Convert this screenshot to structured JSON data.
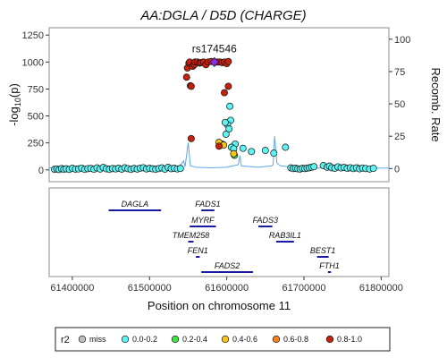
{
  "chart_data": [
    {
      "type": "scatter",
      "title": "AA:DGLA / D5D (CHARGE)",
      "xlabel": "Position on chromosome 11",
      "ylabel": "-log10(p)",
      "ylabel_parts": {
        "prefix": "-log",
        "sub": "10",
        "suffix": "(p)"
      },
      "y2label": "Recomb. Rate",
      "xlim": [
        61370000,
        61810000
      ],
      "ylim": [
        -60,
        1260
      ],
      "y2lim": [
        -6,
        104
      ],
      "yticks": [
        0,
        250,
        500,
        750,
        1000,
        1250
      ],
      "y2ticks": [
        0,
        25,
        50,
        75,
        100
      ],
      "xticks": [
        61400000,
        61500000,
        61600000,
        61700000,
        61800000
      ],
      "xtick_labels": [
        "61400000",
        "61500000",
        "61600000",
        "61700000",
        "61800000"
      ],
      "grid": false,
      "lead_snp": {
        "label": "rs174546",
        "x": 61584000,
        "y": 1000,
        "color": "#8a2be2"
      },
      "groups": [
        {
          "name": "miss",
          "color": "#bebebe",
          "points": []
        },
        {
          "name": "0.0-0.2",
          "color": "#5ff2f2",
          "points": [
            [
              61377000,
              5
            ],
            [
              61380000,
              8
            ],
            [
              61383000,
              3
            ],
            [
              61386000,
              12
            ],
            [
              61389000,
              6
            ],
            [
              61392000,
              10
            ],
            [
              61396000,
              4
            ],
            [
              61400000,
              14
            ],
            [
              61404000,
              7
            ],
            [
              61408000,
              9
            ],
            [
              61412000,
              16
            ],
            [
              61416000,
              5
            ],
            [
              61420000,
              11
            ],
            [
              61424000,
              13
            ],
            [
              61428000,
              6
            ],
            [
              61432000,
              18
            ],
            [
              61436000,
              8
            ],
            [
              61440000,
              22
            ],
            [
              61444000,
              10
            ],
            [
              61448000,
              6
            ],
            [
              61452000,
              12
            ],
            [
              61456000,
              9
            ],
            [
              61460000,
              15
            ],
            [
              61464000,
              7
            ],
            [
              61468000,
              19
            ],
            [
              61472000,
              11
            ],
            [
              61476000,
              5
            ],
            [
              61480000,
              13
            ],
            [
              61484000,
              8
            ],
            [
              61488000,
              16
            ],
            [
              61492000,
              20
            ],
            [
              61496000,
              9
            ],
            [
              61500000,
              14
            ],
            [
              61504000,
              10
            ],
            [
              61508000,
              6
            ],
            [
              61512000,
              12
            ],
            [
              61516000,
              18
            ],
            [
              61520000,
              7
            ],
            [
              61524000,
              23
            ],
            [
              61528000,
              11
            ],
            [
              61532000,
              15
            ],
            [
              61536000,
              9
            ],
            [
              61540000,
              13
            ],
            [
              61604000,
              590
            ],
            [
              61605000,
              460
            ],
            [
              61601000,
              420
            ],
            [
              61598000,
              440
            ],
            [
              61603000,
              380
            ],
            [
              61599000,
              330
            ],
            [
              61611000,
              240
            ],
            [
              61606000,
              210
            ],
            [
              61594000,
              240
            ],
            [
              61609000,
              195
            ],
            [
              61621000,
              200
            ],
            [
              61632000,
              170
            ],
            [
              61650000,
              180
            ],
            [
              61661000,
              155
            ],
            [
              61676000,
              210
            ],
            [
              61683000,
              18
            ],
            [
              61686000,
              12
            ],
            [
              61689000,
              15
            ],
            [
              61692000,
              10
            ],
            [
              61695000,
              8
            ],
            [
              61698000,
              14
            ],
            [
              61701000,
              12
            ],
            [
              61704000,
              16
            ],
            [
              61707000,
              20
            ],
            [
              61710000,
              25
            ],
            [
              61713000,
              30
            ],
            [
              61725000,
              40
            ],
            [
              61730000,
              25
            ],
            [
              61733000,
              35
            ],
            [
              61736000,
              20
            ],
            [
              61740000,
              15
            ],
            [
              61744000,
              28
            ],
            [
              61748000,
              18
            ],
            [
              61752000,
              22
            ],
            [
              61756000,
              14
            ],
            [
              61760000,
              20
            ],
            [
              61764000,
              12
            ],
            [
              61768000,
              18
            ],
            [
              61772000,
              10
            ],
            [
              61776000,
              16
            ],
            [
              61780000,
              12
            ],
            [
              61785000,
              8
            ],
            [
              61790000,
              14
            ]
          ]
        },
        {
          "name": "0.2-0.4",
          "color": "#44e344",
          "points": [
            [
              61610000,
              135
            ]
          ]
        },
        {
          "name": "0.4-0.6",
          "color": "#f5c518",
          "points": [
            [
              61590000,
              255
            ],
            [
              61596000,
              230
            ],
            [
              61609000,
              150
            ]
          ]
        },
        {
          "name": "0.6-0.8",
          "color": "#f58220",
          "points": []
        },
        {
          "name": "0.8-1.0",
          "color": "#c8200e",
          "points": [
            [
              61548000,
              860
            ],
            [
              61549000,
              945
            ],
            [
              61551000,
              990
            ],
            [
              61552000,
              1000
            ],
            [
              61553000,
              780
            ],
            [
              61554000,
              775
            ],
            [
              61556000,
              960
            ],
            [
              61558000,
              975
            ],
            [
              61559000,
              1000
            ],
            [
              61562000,
              1000
            ],
            [
              61565000,
              990
            ],
            [
              61567000,
              995
            ],
            [
              61570000,
              1000
            ],
            [
              61573000,
              975
            ],
            [
              61576000,
              1000
            ],
            [
              61580000,
              1005
            ],
            [
              61588000,
              1000
            ],
            [
              61591000,
              1000
            ],
            [
              61594000,
              995
            ],
            [
              61597000,
              1000
            ],
            [
              61600000,
              985
            ],
            [
              61602000,
              1005
            ],
            [
              61554000,
              290
            ],
            [
              61590000,
              220
            ],
            [
              61597000,
              715
            ],
            [
              61602000,
              775
            ]
          ]
        }
      ],
      "recomb_rate": [
        [
          61370000,
          0.5
        ],
        [
          61500000,
          0.8
        ],
        [
          61510000,
          2
        ],
        [
          61520000,
          0.5
        ],
        [
          61530000,
          1.5
        ],
        [
          61535000,
          0.8
        ],
        [
          61540000,
          2.5
        ],
        [
          61544000,
          6
        ],
        [
          61546000,
          1.5
        ],
        [
          61550000,
          20
        ],
        [
          61553000,
          2
        ],
        [
          61560000,
          1
        ],
        [
          61580000,
          0.6
        ],
        [
          61600000,
          1
        ],
        [
          61615000,
          3
        ],
        [
          61617000,
          10
        ],
        [
          61619000,
          2
        ],
        [
          61640000,
          1
        ],
        [
          61658000,
          2
        ],
        [
          61660000,
          3
        ],
        [
          61662000,
          25
        ],
        [
          61665000,
          4
        ],
        [
          61670000,
          2
        ],
        [
          61680000,
          1.5
        ],
        [
          61685000,
          0.6
        ],
        [
          61720000,
          0.4
        ],
        [
          61750000,
          0.4
        ],
        [
          61760000,
          1
        ],
        [
          61770000,
          3
        ],
        [
          61775000,
          1
        ],
        [
          61790000,
          0.4
        ],
        [
          61810000,
          0.3
        ]
      ],
      "recomb_color": "#5aa6ee"
    },
    {
      "type": "gene_track",
      "xlim": [
        61370000,
        61810000
      ],
      "genes": [
        {
          "name": "DAGLA",
          "start": 61447000,
          "end": 61515000,
          "row": 1,
          "label_above": true
        },
        {
          "name": "FADS1",
          "start": 61567000,
          "end": 61584000,
          "row": 1,
          "label_above": true
        },
        {
          "name": "MYRF",
          "start": 61552000,
          "end": 61586000,
          "row": 2,
          "label_above": true
        },
        {
          "name": "FADS3",
          "start": 61641000,
          "end": 61659000,
          "row": 2,
          "label_above": true
        },
        {
          "name": "TMEM258",
          "start": 61550000,
          "end": 61557000,
          "row": 3,
          "label_above": true
        },
        {
          "name": "RAB3IL1",
          "start": 61664000,
          "end": 61687000,
          "row": 3,
          "label_above": true
        },
        {
          "name": "FEN1",
          "start": 61560000,
          "end": 61565000,
          "row": 4,
          "label_above": true
        },
        {
          "name": "BEST1",
          "start": 61717000,
          "end": 61732000,
          "row": 4,
          "label_above": true
        },
        {
          "name": "FADS2",
          "start": 61567000,
          "end": 61634000,
          "row": 5,
          "label_above": true
        },
        {
          "name": "FTH1",
          "start": 61731000,
          "end": 61735000,
          "row": 5,
          "label_above": true
        }
      ],
      "gene_color": "#1a1aa0"
    }
  ],
  "legend": {
    "title": "r2",
    "entries": [
      "miss",
      "0.0-0.2",
      "0.2-0.4",
      "0.4-0.6",
      "0.6-0.8",
      "0.8-1.0"
    ]
  }
}
